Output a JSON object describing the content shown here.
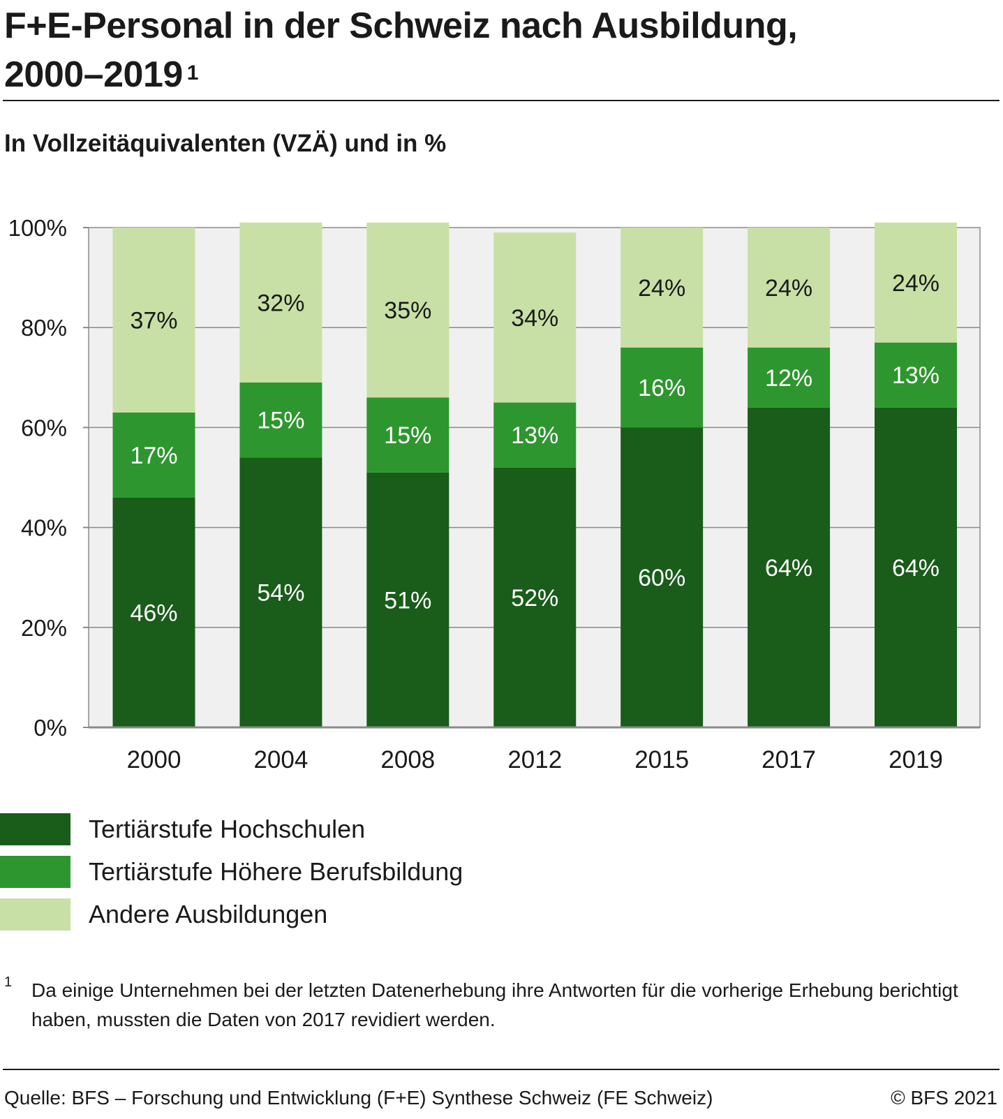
{
  "header": {
    "title_line1": "F+E-Personal in der Schweiz nach Ausbildung,",
    "title_line2": "2000–2019",
    "title_note": "1",
    "subtitle": "In Vollzeitäquivalenten (VZÄ) und in %"
  },
  "chart_data": {
    "type": "bar",
    "stacked": true,
    "categories": [
      "2000",
      "2004",
      "2008",
      "2012",
      "2015",
      "2017",
      "2019"
    ],
    "series": [
      {
        "name": "Tertiärstufe Hochschulen",
        "values": [
          46,
          54,
          51,
          52,
          60,
          64,
          64
        ],
        "labels": [
          "46%",
          "54%",
          "51%",
          "52%",
          "60%",
          "64%",
          "64%"
        ]
      },
      {
        "name": "Tertiärstufe Höhere Berufsbildung",
        "values": [
          17,
          15,
          15,
          13,
          16,
          12,
          13
        ],
        "labels": [
          "17%",
          "15%",
          "15%",
          "13%",
          "16%",
          "12%",
          "13%"
        ]
      },
      {
        "name": "Andere Ausbildungen",
        "values": [
          37,
          32,
          35,
          34,
          24,
          24,
          24
        ],
        "labels": [
          "37%",
          "32%",
          "35%",
          "34%",
          "24%",
          "24%",
          "24%"
        ]
      }
    ],
    "ylim": [
      0,
      100
    ],
    "yticks": [
      "0%",
      "20%",
      "40%",
      "60%",
      "80%",
      "100%"
    ],
    "grid": "horizontal",
    "legend_position": "bottom-left"
  },
  "colors": {
    "series": [
      "#1a5c1a",
      "#2e962e",
      "#c8e0a5"
    ],
    "plot_background": "#f0f0f0",
    "label_light": "#ffffff",
    "label_dark": "#1a1a1a"
  },
  "footnote": {
    "mark": "1",
    "text": "Da einige Unternehmen bei der letzten Datenerhebung ihre Antworten für die vorherige Erhebung berichtigt haben, mussten die Daten von 2017 revidiert werden."
  },
  "footer": {
    "source": "Quelle: BFS – Forschung und Entwicklung (F+E) Synthese Schweiz (FE Schweiz)",
    "copyright": "© BFS 2021"
  }
}
